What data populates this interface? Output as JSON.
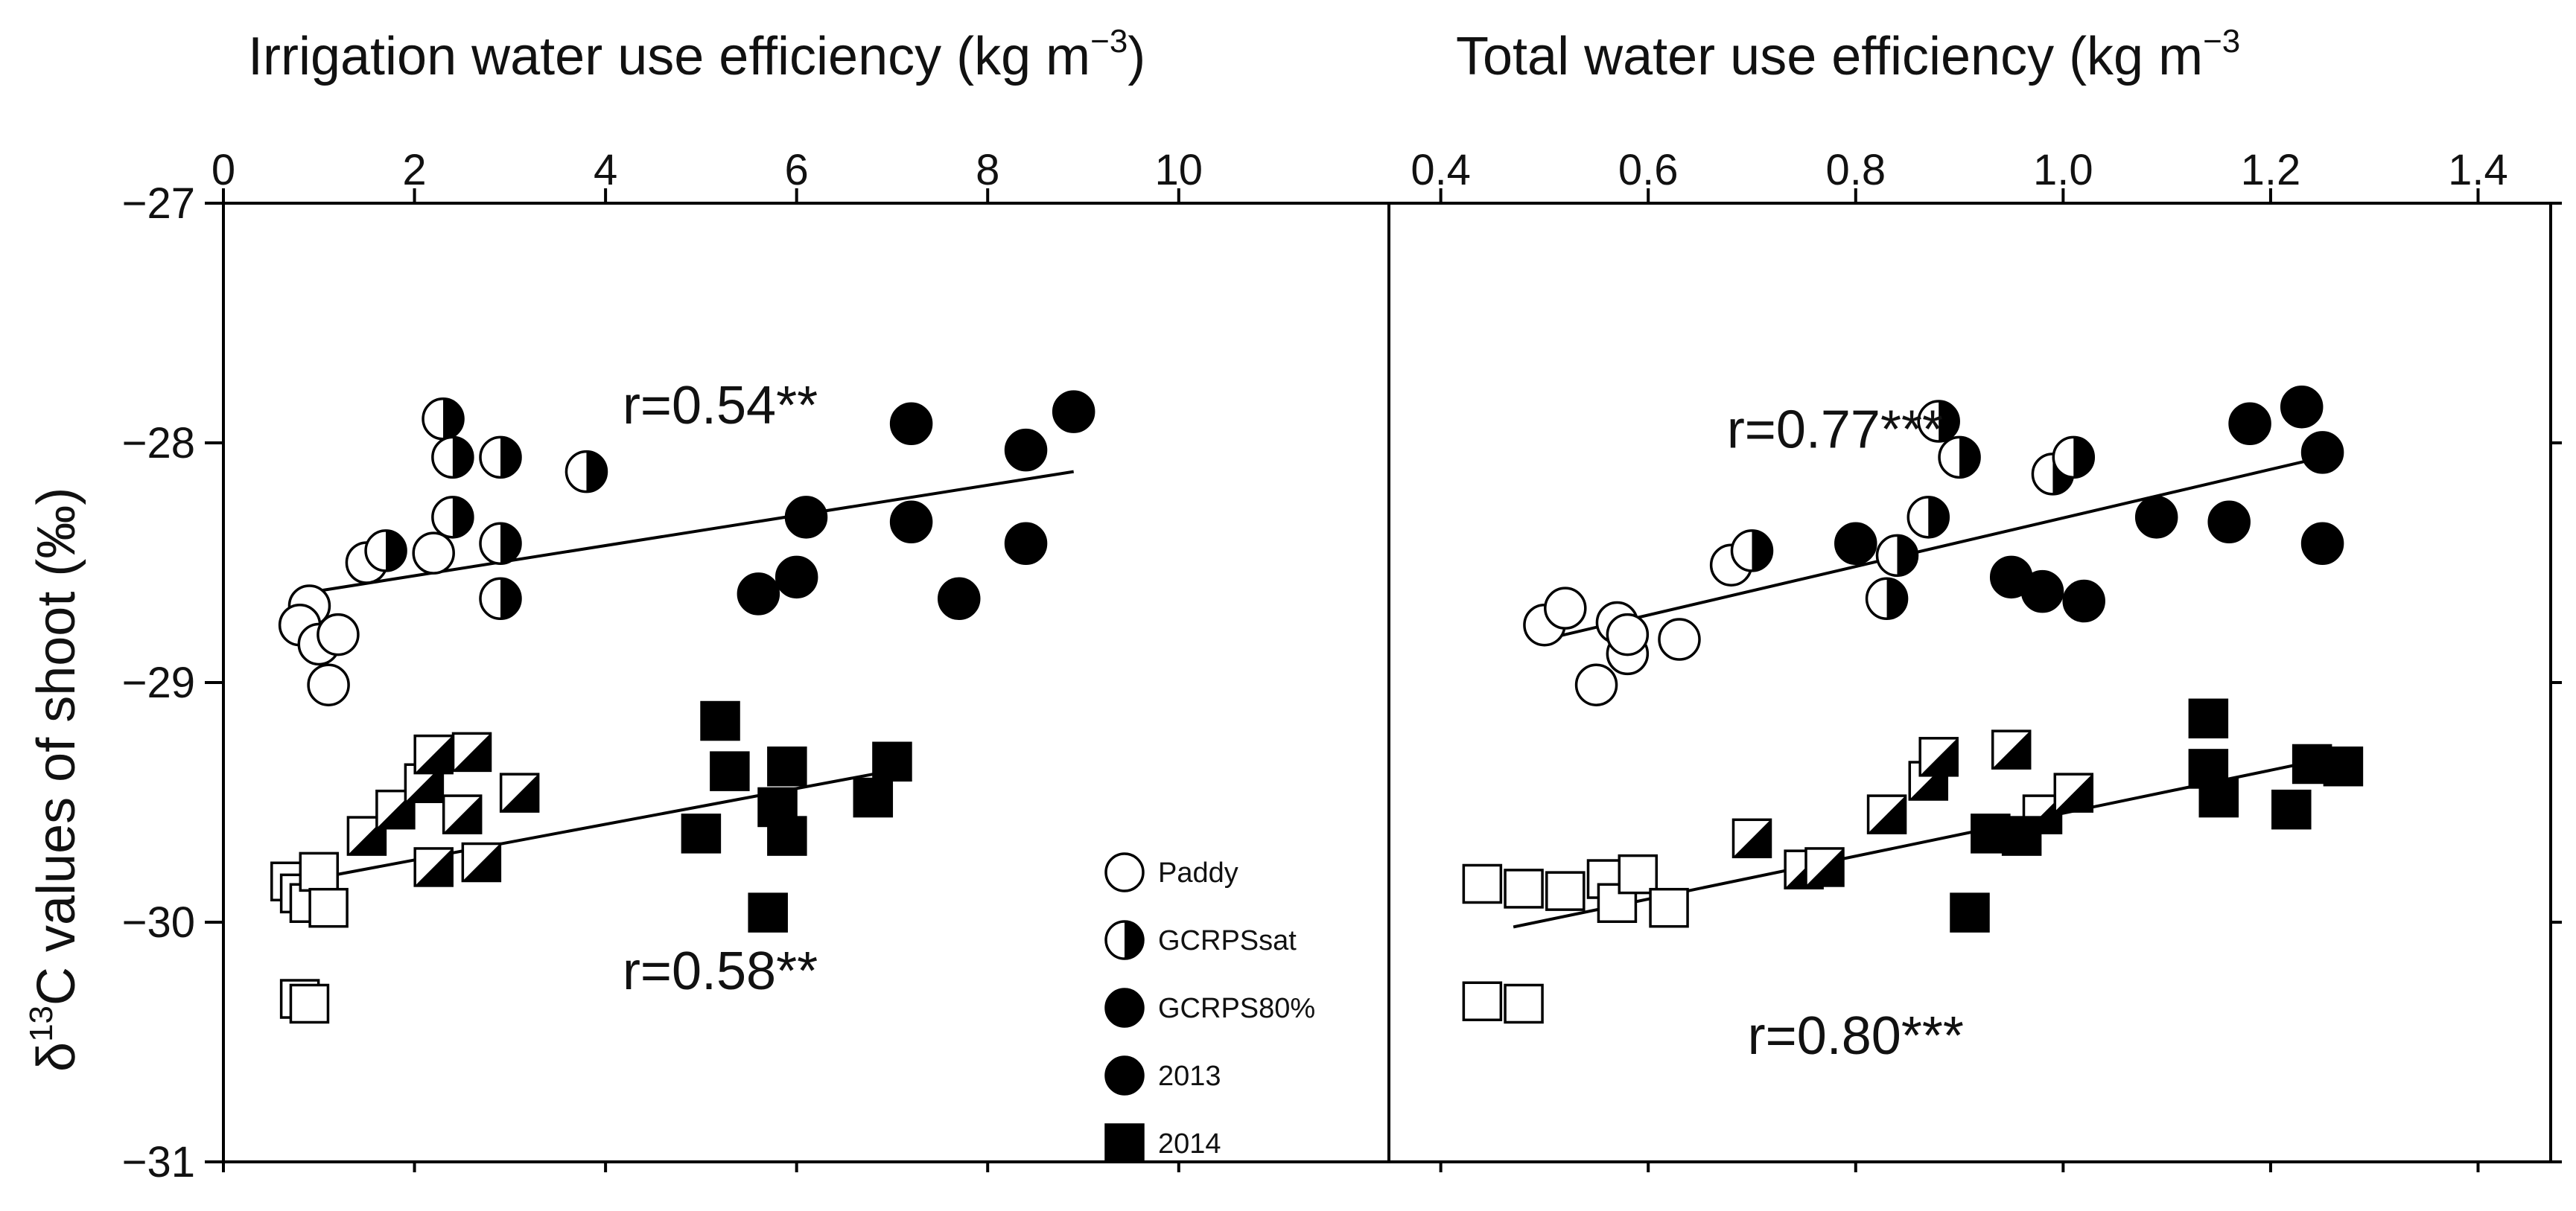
{
  "chart_data": {
    "type": "scatter",
    "y_axis": {
      "label": "δ13C values of shoot (‰)",
      "label_main": "δ",
      "label_sup": "13",
      "label_rest": "C values of shoot (‰)",
      "range": [
        -31,
        -27
      ],
      "ticks": [
        -27,
        -28,
        -29,
        -30,
        -31
      ],
      "tick_labels": [
        "−27",
        "−28",
        "−29",
        "−30",
        "−31"
      ]
    },
    "legend": {
      "position": "bottom-right of left panel",
      "entries": [
        {
          "label": "Paddy",
          "marker": "circle",
          "fill": "open"
        },
        {
          "label": "GCRPSsat",
          "marker": "circle",
          "fill": "half"
        },
        {
          "label": "GCRPS80%",
          "marker": "circle",
          "fill": "solid"
        },
        {
          "label": "2013",
          "marker": "circle",
          "fill": "solid"
        },
        {
          "label": "2014",
          "marker": "square",
          "fill": "solid"
        }
      ]
    },
    "panels": [
      {
        "id": "left",
        "x_axis": {
          "label": "Irrigation water use efficiency (kg m−3)",
          "label_main": "Irrigation water use efficiency (kg m",
          "label_sup": "−3",
          "label_close": ")",
          "range": [
            0,
            12.2
          ],
          "ticks": [
            0,
            2,
            4,
            6,
            8,
            10
          ],
          "tick_labels": [
            "0",
            "2",
            "4",
            "6",
            "8",
            "10"
          ]
        },
        "annotations": [
          {
            "text": "r=0.54**",
            "x": 5.2,
            "y": -27.92
          },
          {
            "text": "r=0.58**",
            "x": 5.2,
            "y": -30.28
          }
        ],
        "regression_lines": [
          {
            "x": [
              0.8,
              8.9
            ],
            "y": [
              -28.63,
              -28.12
            ]
          },
          {
            "x": [
              0.8,
              7.1
            ],
            "y": [
              -29.83,
              -29.36
            ]
          }
        ],
        "points": [
          {
            "x": 0.9,
            "y": -28.68,
            "marker": "circle",
            "fill": "open"
          },
          {
            "x": 0.8,
            "y": -28.76,
            "marker": "circle",
            "fill": "open"
          },
          {
            "x": 1.0,
            "y": -28.84,
            "marker": "circle",
            "fill": "open"
          },
          {
            "x": 1.1,
            "y": -29.01,
            "marker": "circle",
            "fill": "open"
          },
          {
            "x": 1.2,
            "y": -28.8,
            "marker": "circle",
            "fill": "open"
          },
          {
            "x": 1.5,
            "y": -28.5,
            "marker": "circle",
            "fill": "open"
          },
          {
            "x": 2.2,
            "y": -28.46,
            "marker": "circle",
            "fill": "open"
          },
          {
            "x": 1.7,
            "y": -28.45,
            "marker": "circle",
            "fill": "half"
          },
          {
            "x": 2.3,
            "y": -27.9,
            "marker": "circle",
            "fill": "half"
          },
          {
            "x": 2.4,
            "y": -28.06,
            "marker": "circle",
            "fill": "half"
          },
          {
            "x": 2.4,
            "y": -28.31,
            "marker": "circle",
            "fill": "half"
          },
          {
            "x": 2.9,
            "y": -28.06,
            "marker": "circle",
            "fill": "half"
          },
          {
            "x": 2.9,
            "y": -28.42,
            "marker": "circle",
            "fill": "half"
          },
          {
            "x": 2.9,
            "y": -28.65,
            "marker": "circle",
            "fill": "half"
          },
          {
            "x": 3.8,
            "y": -28.12,
            "marker": "circle",
            "fill": "half"
          },
          {
            "x": 5.6,
            "y": -28.63,
            "marker": "circle",
            "fill": "solid"
          },
          {
            "x": 6.0,
            "y": -28.56,
            "marker": "circle",
            "fill": "solid"
          },
          {
            "x": 6.1,
            "y": -28.31,
            "marker": "circle",
            "fill": "solid"
          },
          {
            "x": 7.2,
            "y": -28.33,
            "marker": "circle",
            "fill": "solid"
          },
          {
            "x": 7.2,
            "y": -27.92,
            "marker": "circle",
            "fill": "solid"
          },
          {
            "x": 7.7,
            "y": -28.65,
            "marker": "circle",
            "fill": "solid"
          },
          {
            "x": 8.4,
            "y": -28.03,
            "marker": "circle",
            "fill": "solid"
          },
          {
            "x": 8.4,
            "y": -28.42,
            "marker": "circle",
            "fill": "solid"
          },
          {
            "x": 8.9,
            "y": -27.87,
            "marker": "circle",
            "fill": "solid"
          },
          {
            "x": 0.7,
            "y": -29.83,
            "marker": "square",
            "fill": "open"
          },
          {
            "x": 0.8,
            "y": -29.88,
            "marker": "square",
            "fill": "open"
          },
          {
            "x": 0.9,
            "y": -29.92,
            "marker": "square",
            "fill": "open"
          },
          {
            "x": 1.0,
            "y": -29.79,
            "marker": "square",
            "fill": "open"
          },
          {
            "x": 1.1,
            "y": -29.94,
            "marker": "square",
            "fill": "open"
          },
          {
            "x": 0.8,
            "y": -30.32,
            "marker": "square",
            "fill": "open"
          },
          {
            "x": 0.9,
            "y": -30.34,
            "marker": "square",
            "fill": "open"
          },
          {
            "x": 1.5,
            "y": -29.64,
            "marker": "square",
            "fill": "half"
          },
          {
            "x": 1.8,
            "y": -29.53,
            "marker": "square",
            "fill": "half"
          },
          {
            "x": 2.1,
            "y": -29.42,
            "marker": "square",
            "fill": "half"
          },
          {
            "x": 2.2,
            "y": -29.3,
            "marker": "square",
            "fill": "half"
          },
          {
            "x": 2.2,
            "y": -29.77,
            "marker": "square",
            "fill": "half"
          },
          {
            "x": 2.5,
            "y": -29.55,
            "marker": "square",
            "fill": "half"
          },
          {
            "x": 2.6,
            "y": -29.29,
            "marker": "square",
            "fill": "half"
          },
          {
            "x": 2.7,
            "y": -29.75,
            "marker": "square",
            "fill": "half"
          },
          {
            "x": 3.1,
            "y": -29.46,
            "marker": "square",
            "fill": "half"
          },
          {
            "x": 5.0,
            "y": -29.63,
            "marker": "square",
            "fill": "solid"
          },
          {
            "x": 5.2,
            "y": -29.16,
            "marker": "square",
            "fill": "solid"
          },
          {
            "x": 5.3,
            "y": -29.37,
            "marker": "square",
            "fill": "solid"
          },
          {
            "x": 5.8,
            "y": -29.52,
            "marker": "square",
            "fill": "solid"
          },
          {
            "x": 5.9,
            "y": -29.35,
            "marker": "square",
            "fill": "solid"
          },
          {
            "x": 5.9,
            "y": -29.64,
            "marker": "square",
            "fill": "solid"
          },
          {
            "x": 5.7,
            "y": -29.96,
            "marker": "square",
            "fill": "solid"
          },
          {
            "x": 6.8,
            "y": -29.48,
            "marker": "square",
            "fill": "solid"
          },
          {
            "x": 7.0,
            "y": -29.33,
            "marker": "square",
            "fill": "solid"
          }
        ]
      },
      {
        "id": "right",
        "x_axis": {
          "label": "Total water use efficiency (kg m−3",
          "label_main": "Total water use efficiency (kg m",
          "label_sup": "−3",
          "label_close": "",
          "range": [
            0.35,
            1.47
          ],
          "ticks": [
            0.4,
            0.6,
            0.8,
            1.0,
            1.2,
            1.4
          ],
          "tick_labels": [
            "0.4",
            "0.6",
            "0.8",
            "1.0",
            "1.2",
            "1.4"
          ]
        },
        "annotations": [
          {
            "text": "r=0.77***",
            "x": 0.78,
            "y": -28.02
          },
          {
            "text": "r=0.80***",
            "x": 0.8,
            "y": -30.55
          }
        ],
        "regression_lines": [
          {
            "x": [
              0.5,
              1.24
            ],
            "y": [
              -28.82,
              -28.07
            ]
          },
          {
            "x": [
              0.47,
              1.24
            ],
            "y": [
              -30.02,
              -29.33
            ]
          }
        ],
        "points": [
          {
            "x": 0.5,
            "y": -28.76,
            "marker": "circle",
            "fill": "open"
          },
          {
            "x": 0.52,
            "y": -28.69,
            "marker": "circle",
            "fill": "open"
          },
          {
            "x": 0.55,
            "y": -29.01,
            "marker": "circle",
            "fill": "open"
          },
          {
            "x": 0.57,
            "y": -28.75,
            "marker": "circle",
            "fill": "open"
          },
          {
            "x": 0.58,
            "y": -28.88,
            "marker": "circle",
            "fill": "open"
          },
          {
            "x": 0.58,
            "y": -28.8,
            "marker": "circle",
            "fill": "open"
          },
          {
            "x": 0.63,
            "y": -28.82,
            "marker": "circle",
            "fill": "open"
          },
          {
            "x": 0.68,
            "y": -28.51,
            "marker": "circle",
            "fill": "open"
          },
          {
            "x": 0.7,
            "y": -28.45,
            "marker": "circle",
            "fill": "half"
          },
          {
            "x": 0.84,
            "y": -28.47,
            "marker": "circle",
            "fill": "half"
          },
          {
            "x": 0.83,
            "y": -28.65,
            "marker": "circle",
            "fill": "half"
          },
          {
            "x": 0.87,
            "y": -28.31,
            "marker": "circle",
            "fill": "half"
          },
          {
            "x": 0.88,
            "y": -27.91,
            "marker": "circle",
            "fill": "half"
          },
          {
            "x": 0.9,
            "y": -28.06,
            "marker": "circle",
            "fill": "half"
          },
          {
            "x": 0.99,
            "y": -28.13,
            "marker": "circle",
            "fill": "half"
          },
          {
            "x": 1.01,
            "y": -28.06,
            "marker": "circle",
            "fill": "half"
          },
          {
            "x": 0.8,
            "y": -28.42,
            "marker": "circle",
            "fill": "solid"
          },
          {
            "x": 0.95,
            "y": -28.56,
            "marker": "circle",
            "fill": "solid"
          },
          {
            "x": 0.98,
            "y": -28.62,
            "marker": "circle",
            "fill": "solid"
          },
          {
            "x": 1.02,
            "y": -28.66,
            "marker": "circle",
            "fill": "solid"
          },
          {
            "x": 1.09,
            "y": -28.31,
            "marker": "circle",
            "fill": "solid"
          },
          {
            "x": 1.16,
            "y": -28.33,
            "marker": "circle",
            "fill": "solid"
          },
          {
            "x": 1.18,
            "y": -27.92,
            "marker": "circle",
            "fill": "solid"
          },
          {
            "x": 1.23,
            "y": -27.85,
            "marker": "circle",
            "fill": "solid"
          },
          {
            "x": 1.25,
            "y": -28.04,
            "marker": "circle",
            "fill": "solid"
          },
          {
            "x": 1.25,
            "y": -28.42,
            "marker": "circle",
            "fill": "solid"
          },
          {
            "x": 0.44,
            "y": -29.84,
            "marker": "square",
            "fill": "open"
          },
          {
            "x": 0.48,
            "y": -29.86,
            "marker": "square",
            "fill": "open"
          },
          {
            "x": 0.52,
            "y": -29.87,
            "marker": "square",
            "fill": "open"
          },
          {
            "x": 0.56,
            "y": -29.82,
            "marker": "square",
            "fill": "open"
          },
          {
            "x": 0.57,
            "y": -29.92,
            "marker": "square",
            "fill": "open"
          },
          {
            "x": 0.59,
            "y": -29.8,
            "marker": "square",
            "fill": "open"
          },
          {
            "x": 0.62,
            "y": -29.94,
            "marker": "square",
            "fill": "open"
          },
          {
            "x": 0.44,
            "y": -30.33,
            "marker": "square",
            "fill": "open"
          },
          {
            "x": 0.48,
            "y": -30.34,
            "marker": "square",
            "fill": "open"
          },
          {
            "x": 0.7,
            "y": -29.65,
            "marker": "square",
            "fill": "half"
          },
          {
            "x": 0.75,
            "y": -29.78,
            "marker": "square",
            "fill": "half"
          },
          {
            "x": 0.77,
            "y": -29.77,
            "marker": "square",
            "fill": "half"
          },
          {
            "x": 0.83,
            "y": -29.55,
            "marker": "square",
            "fill": "half"
          },
          {
            "x": 0.87,
            "y": -29.41,
            "marker": "square",
            "fill": "half"
          },
          {
            "x": 0.88,
            "y": -29.31,
            "marker": "square",
            "fill": "half"
          },
          {
            "x": 0.95,
            "y": -29.28,
            "marker": "square",
            "fill": "half"
          },
          {
            "x": 0.98,
            "y": -29.55,
            "marker": "square",
            "fill": "half"
          },
          {
            "x": 1.01,
            "y": -29.46,
            "marker": "square",
            "fill": "half"
          },
          {
            "x": 0.91,
            "y": -29.96,
            "marker": "square",
            "fill": "solid"
          },
          {
            "x": 0.93,
            "y": -29.63,
            "marker": "square",
            "fill": "solid"
          },
          {
            "x": 0.96,
            "y": -29.64,
            "marker": "square",
            "fill": "solid"
          },
          {
            "x": 1.14,
            "y": -29.15,
            "marker": "square",
            "fill": "solid"
          },
          {
            "x": 1.14,
            "y": -29.36,
            "marker": "square",
            "fill": "solid"
          },
          {
            "x": 1.15,
            "y": -29.48,
            "marker": "square",
            "fill": "solid"
          },
          {
            "x": 1.22,
            "y": -29.53,
            "marker": "square",
            "fill": "solid"
          },
          {
            "x": 1.24,
            "y": -29.34,
            "marker": "square",
            "fill": "solid"
          },
          {
            "x": 1.27,
            "y": -29.35,
            "marker": "square",
            "fill": "solid"
          }
        ]
      }
    ]
  }
}
